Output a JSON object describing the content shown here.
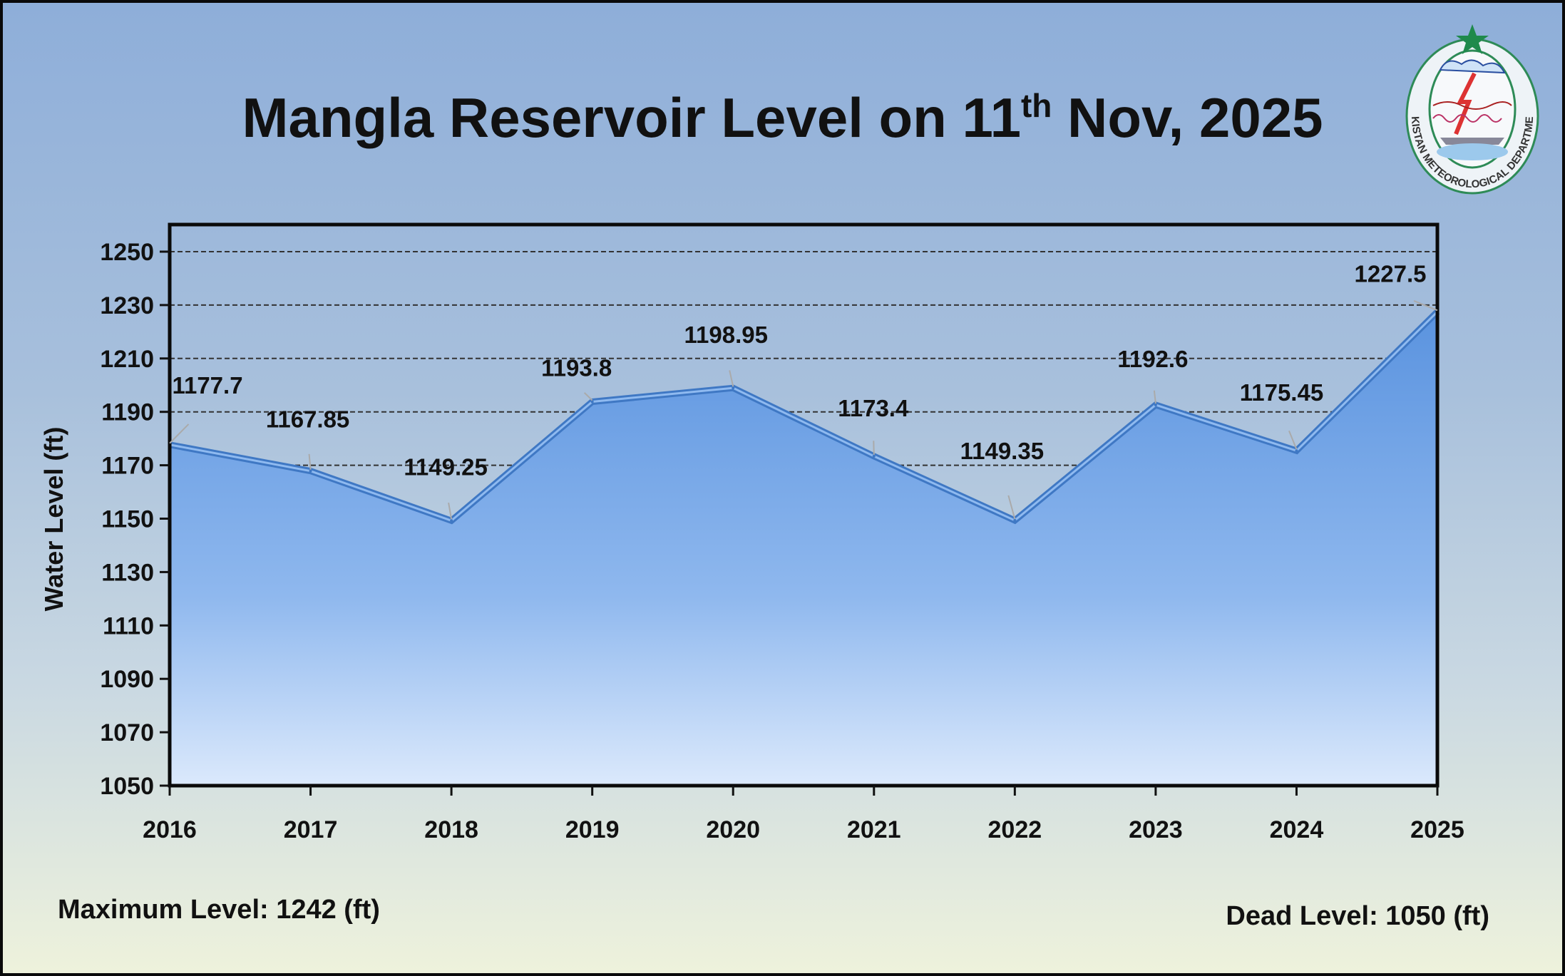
{
  "title": {
    "main": "Mangla Reservoir Level on 11",
    "sup": "th",
    "rest": " Nov, 2025"
  },
  "logo": {
    "text": "PAKISTAN METEOROLOGICAL DEPARTMENT",
    "icon": "pmd-emblem"
  },
  "footer": {
    "max_level": "Maximum Level: 1242 (ft)",
    "dead_level": "Dead Level: 1050 (ft)"
  },
  "colors": {
    "area_top": "#5b93dc",
    "area_bottom": "#d6e6fb",
    "grid": "#333333",
    "star": "#1f8a4c"
  },
  "chart_data": {
    "type": "area",
    "title": "Mangla Reservoir Level on 11th Nov, 2025",
    "xlabel": "",
    "ylabel": "Water Level (ft)",
    "categories": [
      "2016",
      "2017",
      "2018",
      "2019",
      "2020",
      "2021",
      "2022",
      "2023",
      "2024",
      "2025"
    ],
    "values": [
      1177.7,
      1167.85,
      1149.25,
      1193.8,
      1198.95,
      1173.4,
      1149.35,
      1192.6,
      1175.45,
      1227.5
    ],
    "data_labels": [
      "1177.7",
      "1167.85",
      "1149.25",
      "1193.8",
      "1198.95",
      "1173.4",
      "1149.35",
      "1192.6",
      "1175.45",
      "1227.5"
    ],
    "yticks": [
      "1050",
      "1070",
      "1090",
      "1110",
      "1130",
      "1150",
      "1170",
      "1190",
      "1210",
      "1230",
      "1250"
    ],
    "ylim": [
      1050,
      1260
    ],
    "grid": "horizontal dashed",
    "legend": "none"
  }
}
